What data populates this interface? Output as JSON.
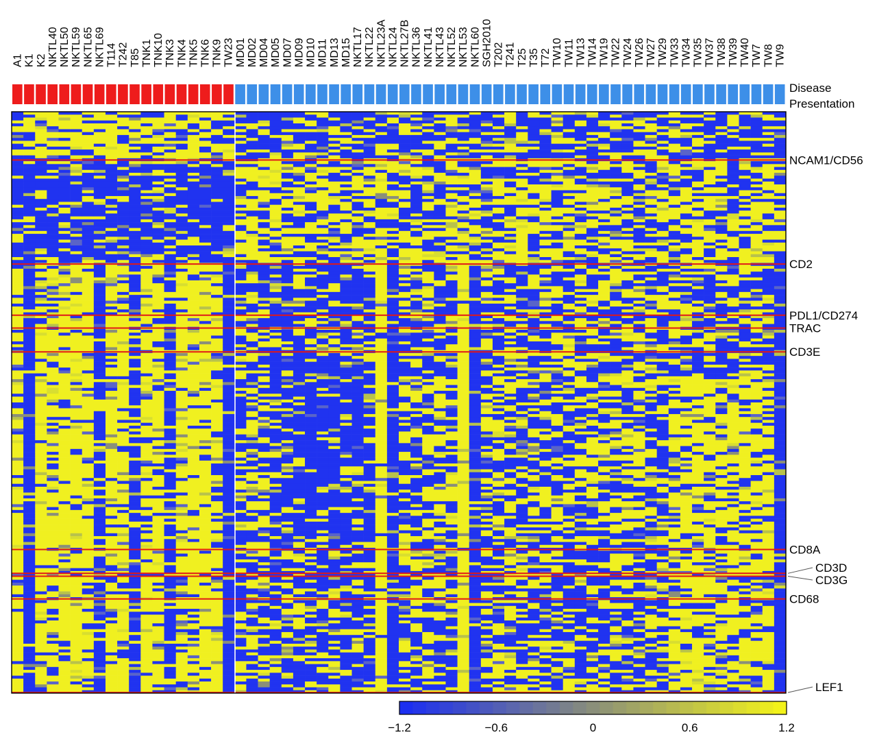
{
  "chart_data": {
    "type": "heatmap",
    "title": "",
    "xlabel": "",
    "ylabel": "",
    "samples": [
      "A1",
      "K1",
      "K2",
      "NKTL40",
      "NKTL50",
      "NKTL59",
      "NKTL65",
      "NKTL69",
      "T114",
      "T242",
      "T85",
      "TNK1",
      "TNK10",
      "TNK3",
      "TNK4",
      "TNK5",
      "TNK6",
      "TNK9",
      "TW23",
      "MD01",
      "MD02",
      "MD04",
      "MD05",
      "MD07",
      "MD09",
      "MD10",
      "MD11",
      "MD13",
      "MD15",
      "NKTL17",
      "NKTL22",
      "NKTL23A",
      "NKTL24",
      "NKTL27B",
      "NKTL36",
      "NKTL41",
      "NKTL43",
      "NKTL52",
      "NKTL53",
      "NKTL60",
      "SGH2010",
      "T202",
      "T241",
      "T25",
      "T35",
      "T72",
      "TW10",
      "TW11",
      "TW13",
      "TW14",
      "TW19",
      "TW22",
      "TW24",
      "TW26",
      "TW27",
      "TW29",
      "TW33",
      "TW34",
      "TW35",
      "TW37",
      "TW38",
      "TW39",
      "TW40",
      "TW7",
      "TW8",
      "TW9"
    ],
    "annotation_track": {
      "label": [
        "Disease",
        "Presentation"
      ],
      "group_a_count": 19,
      "group_a_color": "#ee1c1c",
      "group_b_color": "#3d8fe8"
    },
    "gene_labels": [
      {
        "name": "NCAM1/CD56",
        "row_frac": 0.083
      },
      {
        "name": "CD2",
        "row_frac": 0.262
      },
      {
        "name": "PDL1/CD274",
        "row_frac": 0.35
      },
      {
        "name": "TRAC",
        "row_frac": 0.372
      },
      {
        "name": "CD3E",
        "row_frac": 0.413
      },
      {
        "name": "CD8A",
        "row_frac": 0.753
      },
      {
        "name": "CD3D",
        "row_frac": 0.794,
        "callout": true
      },
      {
        "name": "CD3G",
        "row_frac": 0.799,
        "callout": true
      },
      {
        "name": "CD68",
        "row_frac": 0.838
      },
      {
        "name": "LEF1",
        "row_frac": 0.999,
        "callout": true
      }
    ],
    "color_scale": {
      "min": -1.2,
      "max": 1.2,
      "ticks": [
        "−1.2",
        "−0.6",
        "0",
        "0.6",
        "1.2"
      ],
      "tick_values": [
        -1.2,
        -0.6,
        0,
        0.6,
        1.2
      ],
      "low_color": "#1c2ff0",
      "mid_color": "#8a8f7a",
      "high_color": "#f2f21a"
    },
    "colors": {
      "high": "#f0f020",
      "low": "#2033f0",
      "highlight_line": "#e01818"
    },
    "row_count": 200
  }
}
